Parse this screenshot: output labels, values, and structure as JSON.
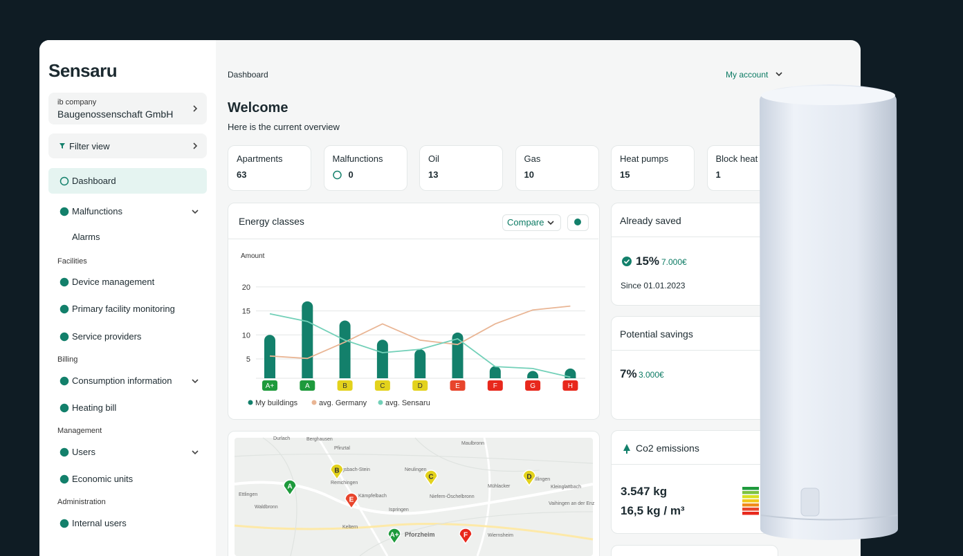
{
  "brand": "Sensaru",
  "company": {
    "label": "ib company",
    "name": "Baugenossenschaft GmbH"
  },
  "filter": "Filter view",
  "nav": [
    {
      "label": "Dashboard",
      "kind": "item",
      "active": true
    },
    {
      "label": "Malfunctions",
      "kind": "item",
      "expandable": true
    },
    {
      "label": "Alarms",
      "kind": "sub"
    },
    {
      "label": "Facilities",
      "kind": "section"
    },
    {
      "label": "Device management",
      "kind": "item"
    },
    {
      "label": "Primary facility monitoring",
      "kind": "item"
    },
    {
      "label": "Service providers",
      "kind": "item"
    },
    {
      "label": "Billing",
      "kind": "section"
    },
    {
      "label": "Consumption information",
      "kind": "item",
      "expandable": true
    },
    {
      "label": "Heating bill",
      "kind": "item"
    },
    {
      "label": "Management",
      "kind": "section"
    },
    {
      "label": "Users",
      "kind": "item",
      "expandable": true
    },
    {
      "label": "Economic units",
      "kind": "item"
    },
    {
      "label": "Administration",
      "kind": "section"
    },
    {
      "label": "Internal users",
      "kind": "item"
    }
  ],
  "header": {
    "breadcrumb": "Dashboard",
    "account": "My account",
    "title": "Welcome",
    "subtitle": "Here is the current overview"
  },
  "stats": [
    {
      "label": "Apartments",
      "value": "63"
    },
    {
      "label": "Malfunctions",
      "value": "0"
    },
    {
      "label": "Oil",
      "value": "13"
    },
    {
      "label": "Gas",
      "value": "10"
    },
    {
      "label": "Heat pumps",
      "value": "15"
    },
    {
      "label": "Block heat",
      "value": "1"
    }
  ],
  "chart_data": {
    "type": "combo",
    "title": "Energy classes",
    "button": "Compare",
    "y_label": "Amount",
    "categories": [
      "A+",
      "A",
      "B",
      "C",
      "D",
      "E",
      "F",
      "G",
      "H"
    ],
    "category_colors": [
      "#1e9a3c",
      "#1e9a3c",
      "#e3d21c",
      "#e3d21c",
      "#e3d21c",
      "#e8452c",
      "#e8281c",
      "#e8281c",
      "#e8281c"
    ],
    "series": [
      {
        "name": "My buildings",
        "kind": "bar",
        "color": "#13806b",
        "values": [
          10,
          17,
          13,
          9,
          7,
          10.5,
          3.5,
          2.5,
          3
        ]
      },
      {
        "name": "avg. Germany",
        "kind": "line",
        "color": "#e9b594",
        "values": [
          5.6,
          5.1,
          8.5,
          12.3,
          8.9,
          8,
          12.3,
          15.2,
          16
        ]
      },
      {
        "name": "avg. Sensaru",
        "kind": "line",
        "color": "#72d0b8",
        "values": [
          14.4,
          12.8,
          8.9,
          6.3,
          7,
          9.2,
          3.4,
          3,
          1.2
        ]
      }
    ],
    "ylim": [
      0,
      22
    ],
    "yticks": [
      5,
      10,
      15,
      20
    ],
    "grid": true
  },
  "cards": {
    "saved": {
      "title": "Already saved",
      "percent": "15%",
      "amount": "7.000€",
      "since": "Since 01.01.2023"
    },
    "potential": {
      "title": "Potential savings",
      "percent": "7%",
      "amount": "3.000€"
    },
    "co2": {
      "title": "Co2 emissions",
      "total": "3.547 kg",
      "per_area": "16,5 kg / m³"
    }
  },
  "map": {
    "markers": [
      {
        "label": "A",
        "color": "#1e9a3c"
      },
      {
        "label": "B",
        "color": "#e3d21c"
      },
      {
        "label": "E",
        "color": "#e8452c"
      },
      {
        "label": "C",
        "color": "#e3d21c"
      },
      {
        "label": "D",
        "color": "#e3d21c"
      },
      {
        "label": "A+",
        "color": "#1e9a3c"
      },
      {
        "label": "F",
        "color": "#e8281c"
      }
    ],
    "places": [
      "Durlach",
      "Berghausen",
      "Pfinztal",
      "Königsbach-Stein",
      "Remchingen",
      "Neulingen",
      "Kämpfelbach",
      "Ettlingen",
      "Waldbronn",
      "Ispringen",
      "Pforzheim",
      "Keltern",
      "Niefern-Öschelbronn",
      "Mühlacker",
      "Maulbronn",
      "Illingen",
      "Vaihingen an der Enz",
      "Kleinglattbach",
      "Wiernsheim"
    ]
  }
}
